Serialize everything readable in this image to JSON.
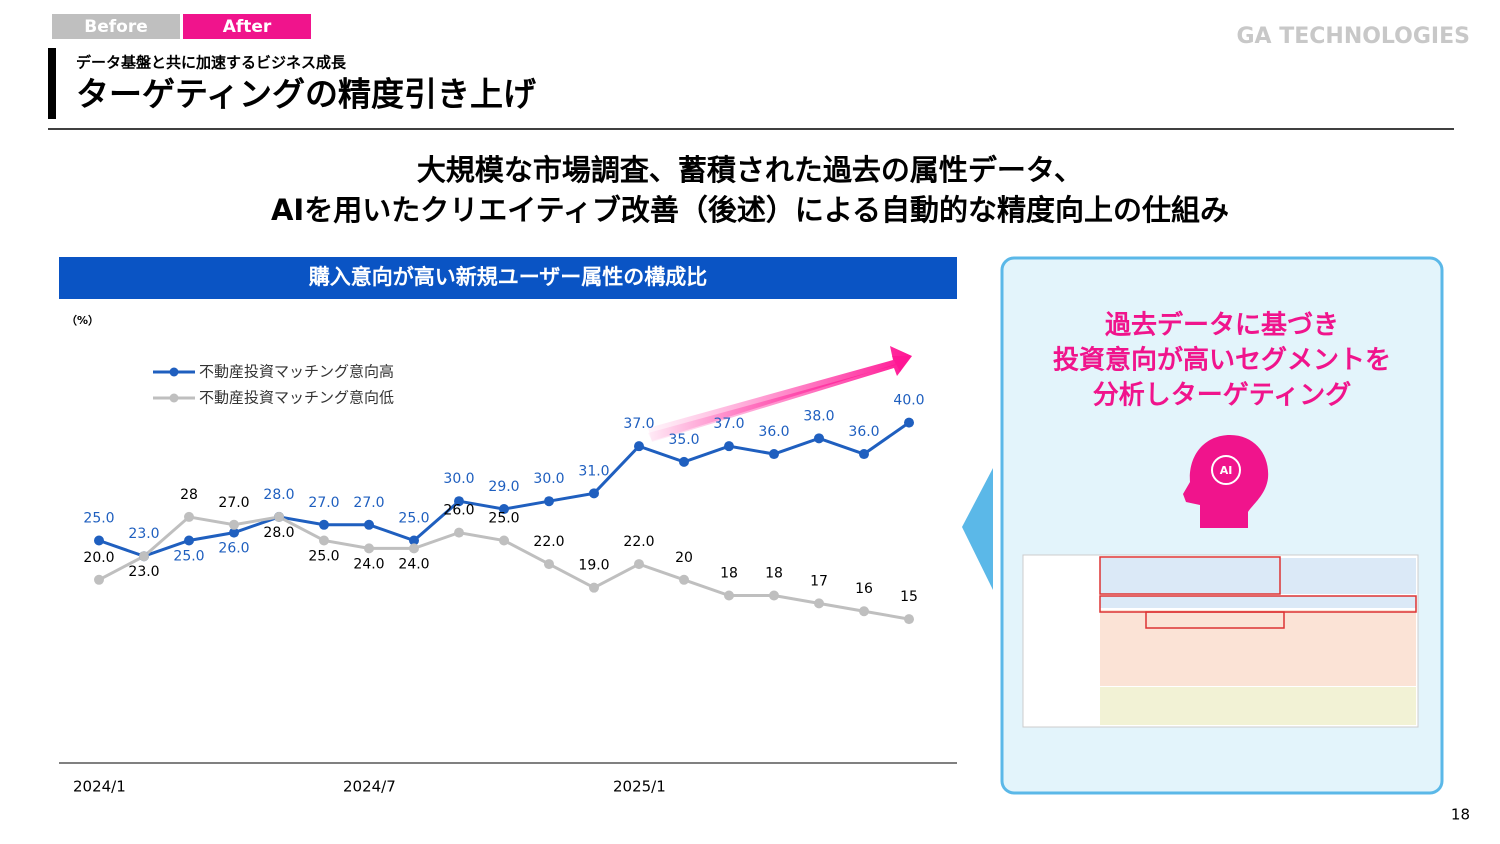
{
  "header": {
    "tabs": [
      "Before",
      "After"
    ],
    "logo": "GA TECHNOLOGIES",
    "subtitle": "データ基盤と共に加速するビジネス成長",
    "title": "ターゲティングの精度引き上げ"
  },
  "headline": [
    "大規模な市場調査、蓄積された過去の属性データ、",
    "AIを用いたクリエイティブ改善（後述）による自動的な精度向上の仕組み"
  ],
  "panel": {
    "lines": [
      "過去データに基づき",
      "投資意向が高いセグメントを",
      "分析しターゲティング"
    ],
    "icon_label": "AI"
  },
  "page_number": "18",
  "chart_data": {
    "type": "line",
    "title": "購入意向が高い新規ユーザー属性の構成比",
    "y_label": "（%）",
    "categories": [
      "2024/1",
      null,
      null,
      null,
      null,
      null,
      "2024/7",
      null,
      null,
      null,
      null,
      null,
      "2025/1",
      null,
      null,
      null,
      null,
      null,
      null
    ],
    "series": [
      {
        "name": "不動産投資マッチング意向高",
        "color": "#1f5fbf",
        "values": [
          25,
          23,
          25,
          26,
          28,
          27,
          27,
          25,
          30,
          29,
          30,
          31,
          37,
          35,
          37,
          36,
          38,
          36,
          40
        ],
        "value_labels": [
          "25.0",
          "23.0",
          "25.0",
          "26.0",
          "28.0",
          "27.0",
          "27.0",
          "25.0",
          "30.0",
          "29.0",
          "30.0",
          "31.0",
          "37.0",
          "35.0",
          "37.0",
          "36.0",
          "38.0",
          "36.0",
          "40.0"
        ]
      },
      {
        "name": "不動産投資マッチング意向低",
        "color": "#bfbfbf",
        "values": [
          20,
          23,
          28,
          27,
          28,
          25,
          24,
          24,
          26,
          25,
          22,
          19,
          22,
          20,
          18,
          18,
          17,
          16,
          15
        ],
        "value_labels": [
          "20.0",
          "23.0",
          "28",
          "27.0",
          "28.0",
          "25.0",
          "24.0",
          "24.0",
          "26.0",
          "25.0",
          "22.0",
          "19.0",
          "22.0",
          "20",
          "18",
          "18",
          "17",
          "16",
          "15"
        ]
      }
    ],
    "ylim": [
      0,
      50
    ],
    "grid": false,
    "legend": "top-left"
  }
}
